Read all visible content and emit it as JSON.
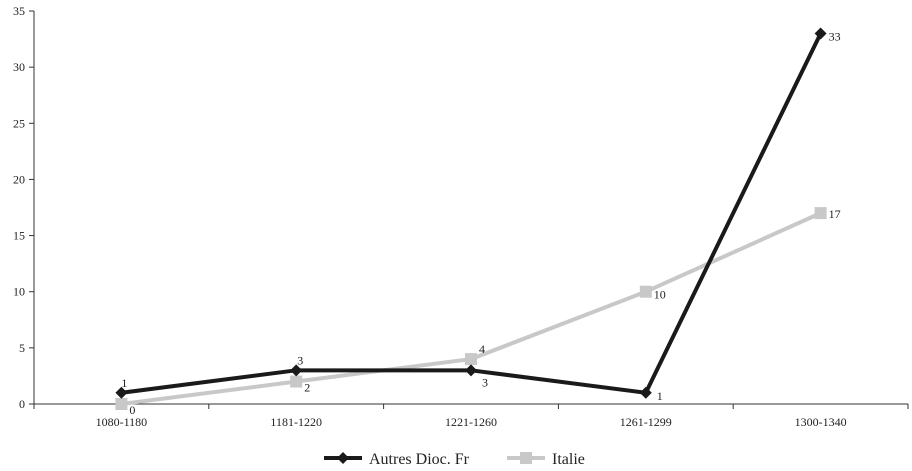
{
  "chart_data": {
    "type": "line",
    "categories": [
      "1080-1180",
      "1181-1220",
      "1221-1260",
      "1261-1299",
      "1300-1340"
    ],
    "ylim": [
      0,
      35
    ],
    "yticks": [
      0,
      5,
      10,
      15,
      20,
      25,
      30,
      35
    ],
    "grid": false,
    "legend_position": "bottom",
    "series": [
      {
        "name": "Autres Dioc. Fr",
        "values": [
          1,
          3,
          3,
          1,
          33
        ],
        "color": "#1a1a1a",
        "marker": "diamond"
      },
      {
        "name": "Italie",
        "values": [
          0,
          2,
          4,
          10,
          17
        ],
        "color": "#c8c8c8",
        "marker": "square"
      }
    ]
  }
}
